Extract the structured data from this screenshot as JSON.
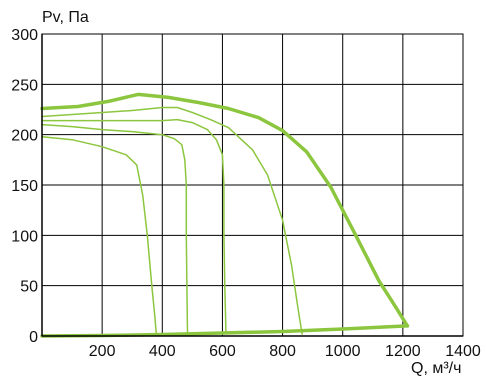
{
  "chart_data": {
    "type": "line",
    "ylabel": "Pv, Па",
    "xlabel": "Q, м³/ч",
    "xlim": [
      0,
      1400
    ],
    "ylim": [
      0,
      300
    ],
    "x_ticks": [
      200,
      400,
      600,
      800,
      1000,
      1200,
      1400
    ],
    "y_ticks": [
      0,
      50,
      100,
      150,
      200,
      250,
      300
    ],
    "grid": true,
    "legend": "none",
    "colors": {
      "curve": "#8cc63f",
      "grid": "#000000"
    },
    "series": [
      {
        "role": "max",
        "width": 3.5,
        "x": [
          0,
          120,
          220,
          320,
          420,
          520,
          620,
          720,
          800,
          880,
          960,
          1040,
          1120,
          1180,
          1215
        ],
        "y": [
          226,
          228,
          233,
          240,
          237,
          232,
          226,
          217,
          204,
          183,
          148,
          102,
          55,
          27,
          10
        ]
      },
      {
        "role": "speed",
        "width": 1.5,
        "x": [
          0,
          100,
          200,
          300,
          400,
          450,
          500,
          560,
          620,
          700,
          750,
          800,
          830,
          850,
          865
        ],
        "y": [
          218,
          220,
          222,
          224,
          227,
          227,
          222,
          215,
          207,
          185,
          160,
          115,
          70,
          30,
          2
        ]
      },
      {
        "role": "speed",
        "width": 1.5,
        "x": [
          0,
          100,
          200,
          300,
          400,
          450,
          500,
          550,
          580,
          600,
          605,
          605,
          608,
          612
        ],
        "y": [
          214,
          214,
          214,
          214,
          214,
          215,
          212,
          205,
          195,
          180,
          150,
          100,
          50,
          2
        ]
      },
      {
        "role": "speed",
        "width": 1.5,
        "x": [
          0,
          100,
          200,
          300,
          400,
          440,
          465,
          475,
          480,
          480,
          482,
          484
        ],
        "y": [
          210,
          208,
          205,
          203,
          200,
          196,
          190,
          175,
          150,
          100,
          50,
          2
        ]
      },
      {
        "role": "speed",
        "width": 1.5,
        "x": [
          0,
          100,
          200,
          280,
          315,
          335,
          350,
          365,
          375,
          380
        ],
        "y": [
          198,
          195,
          188,
          180,
          170,
          140,
          100,
          50,
          20,
          2
        ]
      },
      {
        "role": "system",
        "width": 3.5,
        "x": [
          0,
          200,
          400,
          600,
          800,
          1000,
          1215
        ],
        "y": [
          0,
          0.5,
          1.5,
          3,
          4.5,
          7,
          10
        ]
      }
    ]
  }
}
